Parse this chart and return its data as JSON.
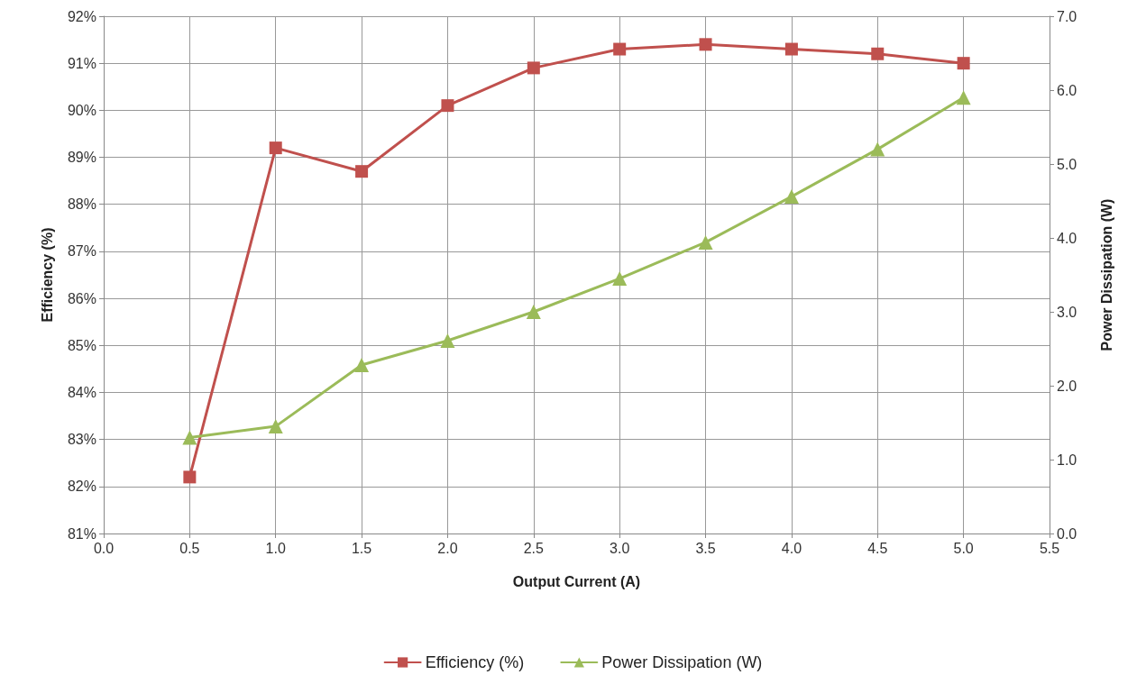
{
  "chart_data": {
    "type": "line",
    "xlabel": "Output Current (A)",
    "ylabel": "Efficiency (%)",
    "y2label": "Power Dissipation (W)",
    "x": [
      0.5,
      1.0,
      1.5,
      2.0,
      2.5,
      3.0,
      3.5,
      4.0,
      4.5,
      5.0
    ],
    "series": [
      {
        "name": "Efficiency (%)",
        "color": "#c0504d",
        "marker": "square",
        "values": [
          82.2,
          89.2,
          88.7,
          90.1,
          90.9,
          91.3,
          91.4,
          91.3,
          91.2,
          91.0
        ]
      },
      {
        "name": "Power Dissipation (W)",
        "color": "#9bbb59",
        "marker": "triangle",
        "axis": "y2",
        "values": [
          1.3,
          1.45,
          2.28,
          2.61,
          3.0,
          3.45,
          3.94,
          4.56,
          5.2,
          5.9
        ]
      }
    ],
    "xlim": [
      0,
      5.5
    ],
    "xticks": [
      {
        "value": 0,
        "label": "0.0"
      },
      0.5,
      {
        "value": 1,
        "label": "1.0"
      },
      1.5,
      {
        "value": 2,
        "label": "2.0"
      },
      2.5,
      {
        "value": 3,
        "label": "3.0"
      },
      3.5,
      {
        "value": 4,
        "label": "4.0"
      },
      4.5,
      {
        "value": 5,
        "label": "5.0"
      },
      5.5
    ],
    "ylim": [
      81,
      92
    ],
    "yticks": [
      {
        "value": 81,
        "label": "81%"
      },
      {
        "value": 82,
        "label": "82%"
      },
      {
        "value": 83,
        "label": "83%"
      },
      {
        "value": 84,
        "label": "84%"
      },
      {
        "value": 85,
        "label": "85%"
      },
      {
        "value": 86,
        "label": "86%"
      },
      {
        "value": 87,
        "label": "87%"
      },
      {
        "value": 88,
        "label": "88%"
      },
      {
        "value": 89,
        "label": "89%"
      },
      {
        "value": 90,
        "label": "90%"
      },
      {
        "value": 91,
        "label": "91%"
      },
      {
        "value": 92,
        "label": "92%"
      }
    ],
    "y2lim": [
      0,
      7
    ],
    "y2ticks": [
      {
        "value": 0,
        "label": "0.0"
      },
      {
        "value": 1,
        "label": "1.0"
      },
      {
        "value": 2,
        "label": "2.0"
      },
      {
        "value": 3,
        "label": "3.0"
      },
      {
        "value": 4,
        "label": "4.0"
      },
      {
        "value": 5,
        "label": "5.0"
      },
      {
        "value": 6,
        "label": "6.0"
      },
      {
        "value": 7,
        "label": "7.0"
      }
    ],
    "grid": true,
    "legend": "bottom",
    "line_style": "solid"
  }
}
